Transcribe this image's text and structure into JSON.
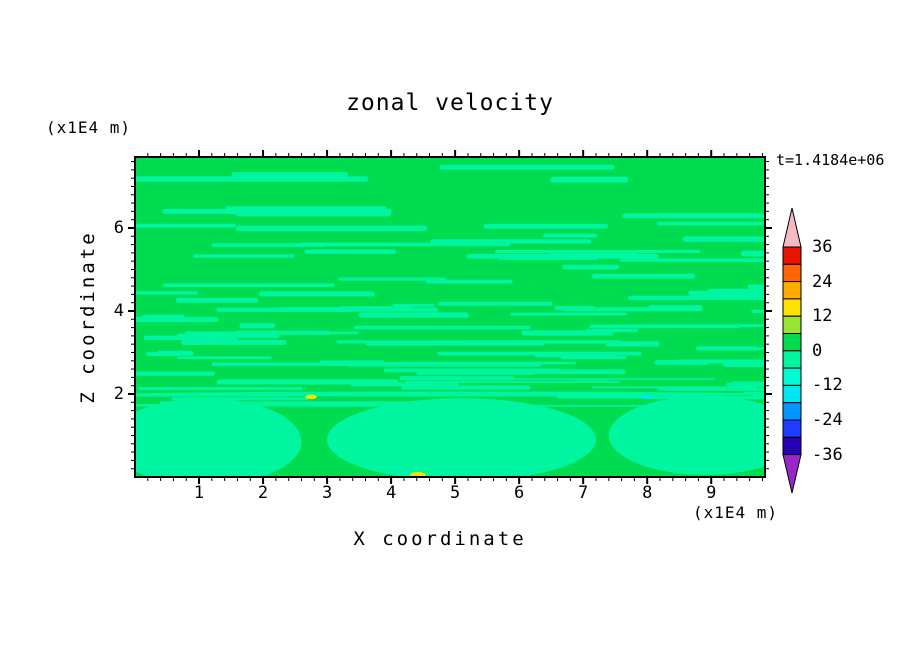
{
  "chart_data": {
    "type": "heatmap",
    "title": "zonal velocity",
    "time_annotation": "t=1.4184e+06",
    "xlabel": "X coordinate",
    "ylabel": "Z coordinate",
    "x_unit_label": "(x1E4 m)",
    "z_unit_label": "(x1E4 m)",
    "xlim": [
      0,
      9.84
    ],
    "zlim": [
      0,
      7.71
    ],
    "x_ticks": [
      1,
      2,
      3,
      4,
      5,
      6,
      7,
      8,
      9
    ],
    "z_ticks": [
      2,
      4,
      6
    ],
    "minor_tick_step": 0.2,
    "colorbar": {
      "tick_labels": [
        "36",
        "24",
        "12",
        "0",
        "-12",
        "-24",
        "-36"
      ],
      "levels": [
        36,
        30,
        24,
        18,
        12,
        6,
        0,
        -6,
        -12,
        -18,
        -24,
        -30,
        -36
      ],
      "segment_colors_top_to_bottom": [
        "#E81400",
        "#FF6400",
        "#FFAA00",
        "#FFE100",
        "#96E632",
        "#00DC50",
        "#00F5A0",
        "#00FAD2",
        "#00E6F0",
        "#0096FF",
        "#1E3CFF",
        "#2800B4"
      ],
      "top_arrow_color": "#F5B9C3",
      "bottom_arrow_color": "#9628C8"
    },
    "field": {
      "description": "Zonal velocity contour field: mostly 0..6 level (green) with thin -6..0 streaks (spring green); broad -6..0 patches below z=2; isolated small extrema near z=2 and bottom edge",
      "background_color": "#00DC50",
      "streak_color": "#00F5A0",
      "seed": 1337,
      "streak_bands": [
        {
          "count": 26,
          "z_min": 4.9,
          "z_max": 7.55,
          "len_min": 0.8,
          "len_max": 3.8,
          "h_min": 0.07,
          "h_max": 0.15
        },
        {
          "count": 70,
          "z_min": 2.1,
          "z_max": 4.9,
          "len_min": 0.5,
          "len_max": 3.2,
          "h_min": 0.06,
          "h_max": 0.13
        },
        {
          "count": 18,
          "z_min": 1.7,
          "z_max": 2.4,
          "len_min": 2.0,
          "len_max": 6.0,
          "h_min": 0.035,
          "h_max": 0.08
        }
      ],
      "patches": [
        {
          "x": 1.1,
          "z": 0.85,
          "rx": 1.5,
          "rz": 1.05
        },
        {
          "x": 5.1,
          "z": 0.9,
          "rx": 2.1,
          "rz": 1.0
        },
        {
          "x": 8.9,
          "z": 1.0,
          "rx": 1.5,
          "rz": 0.95
        },
        {
          "x": 4.9,
          "z": 2.0,
          "rx": 5.0,
          "rz": 0.06
        }
      ],
      "spots": [
        {
          "x": 2.75,
          "z": 1.93,
          "rx": 0.09,
          "rz": 0.055,
          "color": "#FFE100"
        },
        {
          "x": 7.98,
          "z": 1.93,
          "rx": 0.1,
          "rz": 0.05,
          "color": "#00E6F0"
        },
        {
          "x": 4.42,
          "z": 0.05,
          "rx": 0.12,
          "rz": 0.07,
          "color": "#FFE100"
        }
      ]
    }
  }
}
